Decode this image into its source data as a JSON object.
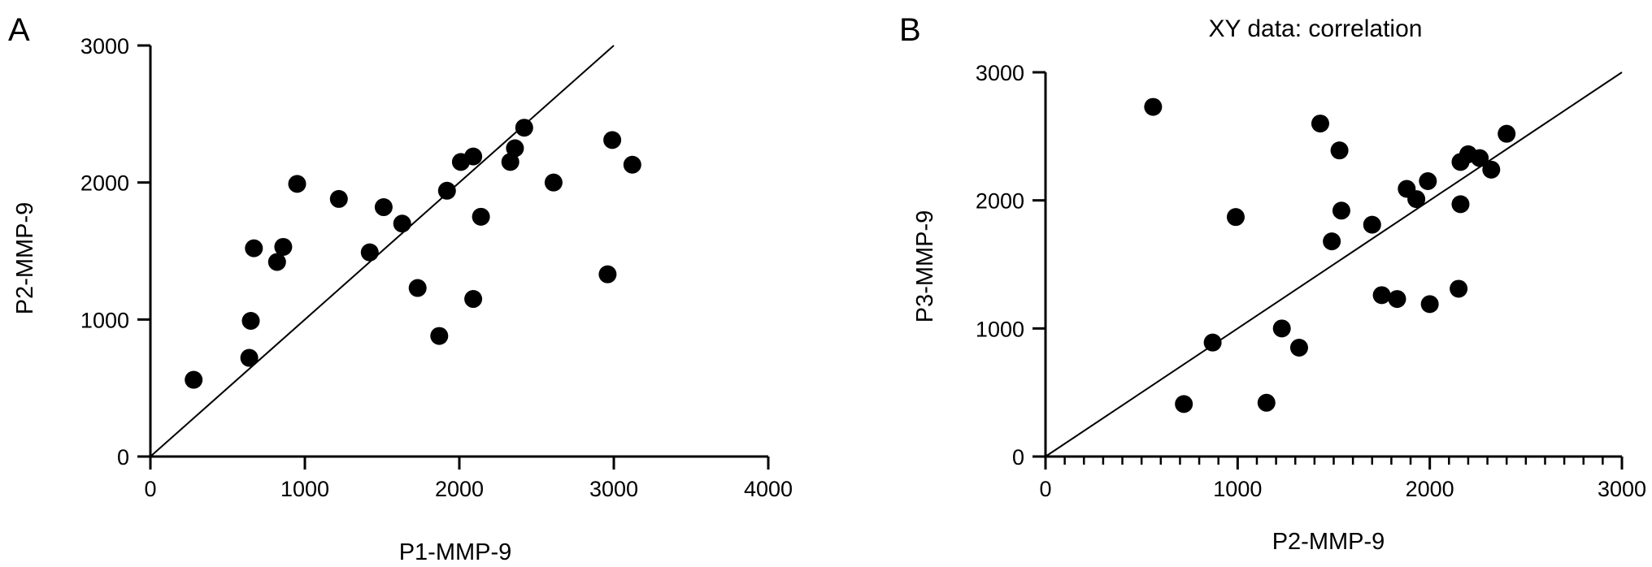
{
  "chart_data": [
    {
      "panel": "A",
      "type": "scatter",
      "title": "",
      "xlabel": "P1-MMP-9",
      "ylabel": "P2-MMP-9",
      "xlim": [
        0,
        4000
      ],
      "ylim": [
        0,
        3000
      ],
      "xticks": [
        "0",
        "1000",
        "2000",
        "3000",
        "4000"
      ],
      "yticks": [
        "0",
        "1000",
        "2000",
        "3000"
      ],
      "grid": false,
      "identity_line": true,
      "points": [
        {
          "x": 280,
          "y": 560
        },
        {
          "x": 640,
          "y": 720
        },
        {
          "x": 650,
          "y": 990
        },
        {
          "x": 670,
          "y": 1520
        },
        {
          "x": 820,
          "y": 1420
        },
        {
          "x": 860,
          "y": 1530
        },
        {
          "x": 950,
          "y": 1990
        },
        {
          "x": 1220,
          "y": 1880
        },
        {
          "x": 1420,
          "y": 1490
        },
        {
          "x": 1510,
          "y": 1820
        },
        {
          "x": 1630,
          "y": 1700
        },
        {
          "x": 1730,
          "y": 1230
        },
        {
          "x": 1870,
          "y": 880
        },
        {
          "x": 1920,
          "y": 1940
        },
        {
          "x": 2010,
          "y": 2150
        },
        {
          "x": 2090,
          "y": 2190
        },
        {
          "x": 2090,
          "y": 1150
        },
        {
          "x": 2140,
          "y": 1750
        },
        {
          "x": 2330,
          "y": 2150
        },
        {
          "x": 2360,
          "y": 2250
        },
        {
          "x": 2420,
          "y": 2400
        },
        {
          "x": 2610,
          "y": 2000
        },
        {
          "x": 2960,
          "y": 1330
        },
        {
          "x": 2990,
          "y": 2310
        },
        {
          "x": 3120,
          "y": 2130
        }
      ]
    },
    {
      "panel": "B",
      "type": "scatter",
      "title": "XY data: correlation",
      "xlabel": "P2-MMP-9",
      "ylabel": "P3-MMP-9",
      "xlim": [
        0,
        3000
      ],
      "ylim": [
        0,
        3000
      ],
      "xticks": [
        "0",
        "1000",
        "2000",
        "3000"
      ],
      "yticks": [
        "0",
        "1000",
        "2000",
        "3000"
      ],
      "grid": false,
      "identity_line": true,
      "points": [
        {
          "x": 560,
          "y": 2730
        },
        {
          "x": 720,
          "y": 410
        },
        {
          "x": 870,
          "y": 890
        },
        {
          "x": 990,
          "y": 1870
        },
        {
          "x": 1150,
          "y": 420
        },
        {
          "x": 1230,
          "y": 1000
        },
        {
          "x": 1320,
          "y": 850
        },
        {
          "x": 1430,
          "y": 2600
        },
        {
          "x": 1490,
          "y": 1680
        },
        {
          "x": 1530,
          "y": 2390
        },
        {
          "x": 1540,
          "y": 1920
        },
        {
          "x": 1700,
          "y": 1810
        },
        {
          "x": 1750,
          "y": 1260
        },
        {
          "x": 1830,
          "y": 1230
        },
        {
          "x": 1880,
          "y": 2090
        },
        {
          "x": 1930,
          "y": 2010
        },
        {
          "x": 1990,
          "y": 2150
        },
        {
          "x": 2000,
          "y": 1190
        },
        {
          "x": 2150,
          "y": 1310
        },
        {
          "x": 2160,
          "y": 1970
        },
        {
          "x": 2160,
          "y": 2300
        },
        {
          "x": 2200,
          "y": 2360
        },
        {
          "x": 2260,
          "y": 2330
        },
        {
          "x": 2320,
          "y": 2240
        },
        {
          "x": 2400,
          "y": 2520
        }
      ]
    }
  ]
}
